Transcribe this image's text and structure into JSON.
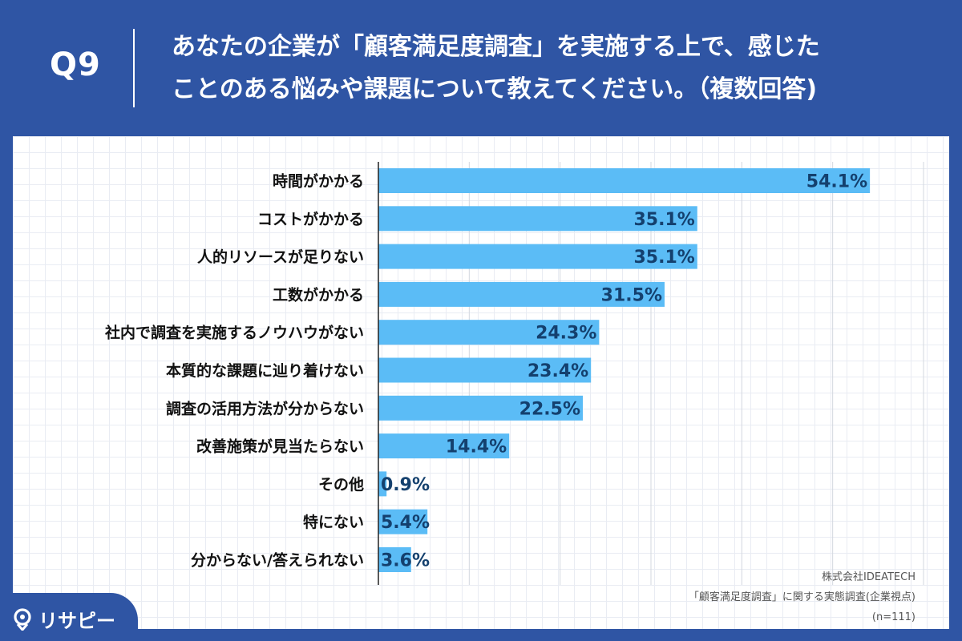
{
  "question": {
    "number": "Q9",
    "line1": "あなたの企業が「顧客満足度調査」を実施する上で、感じた",
    "line2": "ことのある悩みや課題について教えてください。（複数回答)"
  },
  "chart_data": {
    "type": "bar",
    "orientation": "horizontal",
    "categories": [
      "時間がかかる",
      "コストがかかる",
      "人的リソースが足りない",
      "工数がかかる",
      "社内で調査を実施するノウハウがない",
      "本質的な課題に辿り着けない",
      "調査の活用方法が分からない",
      "改善施策が見当たらない",
      "その他",
      "特にない",
      "分からない/答えられない"
    ],
    "values": [
      54.1,
      35.1,
      35.1,
      31.5,
      24.3,
      23.4,
      22.5,
      14.4,
      0.9,
      5.4,
      3.6
    ],
    "value_suffix": "%",
    "xlim": [
      0,
      60
    ],
    "bar_color": "#5bbcf6",
    "grid": true
  },
  "source": {
    "company": "株式会社IDEATECH",
    "survey": "「顧客満足度調査」に関する実態調査(企業視点)",
    "sample": "(n=111)"
  },
  "brand": {
    "name": "リサピー",
    "icon": "map-pin-icon"
  },
  "colors": {
    "background": "#2f55a4",
    "bar": "#5bbcf6",
    "value_text": "#14406e"
  }
}
